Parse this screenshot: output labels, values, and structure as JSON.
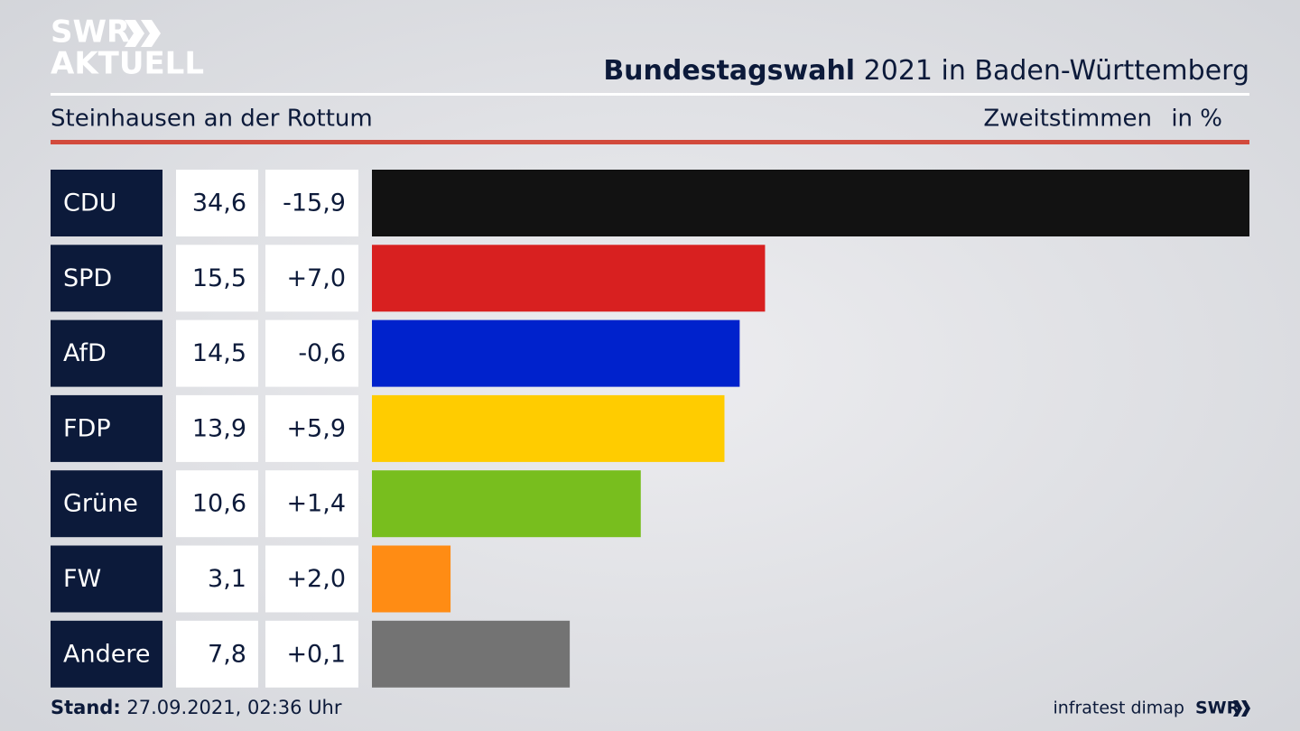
{
  "logo": {
    "line1": "SWR",
    "line2": "AKTUELL"
  },
  "chart_data": {
    "type": "bar",
    "title_bold": "Bundestagswahl",
    "title": "2021 in Baden-Württemberg",
    "subtitle": "Steinhausen an der Rottum",
    "measure": "Zweitstimmen",
    "unit": "in %",
    "categories": [
      "CDU",
      "SPD",
      "AfD",
      "FDP",
      "Grüne",
      "FW",
      "Andere"
    ],
    "values": [
      34.6,
      15.5,
      14.5,
      13.9,
      10.6,
      3.1,
      7.8
    ],
    "value_labels": [
      "34,6",
      "15,5",
      "14,5",
      "13,9",
      "10,6",
      "3,1",
      "7,8"
    ],
    "changes": [
      -15.9,
      7.0,
      -0.6,
      5.9,
      1.4,
      2.0,
      0.1
    ],
    "change_labels": [
      "-15,9",
      "+7,0",
      "-0,6",
      "+5,9",
      "+1,4",
      "+2,0",
      "+0,1"
    ],
    "colors": [
      "#121212",
      "#d82020",
      "#0022cc",
      "#ffcc00",
      "#78be1e",
      "#ff8c14",
      "#737373"
    ],
    "xlim": [
      0,
      34.6
    ]
  },
  "footer": {
    "stand_label": "Stand:",
    "stand": "27.09.2021, 02:36 Uhr",
    "source": "infratest dimap",
    "brand": "SWR"
  }
}
